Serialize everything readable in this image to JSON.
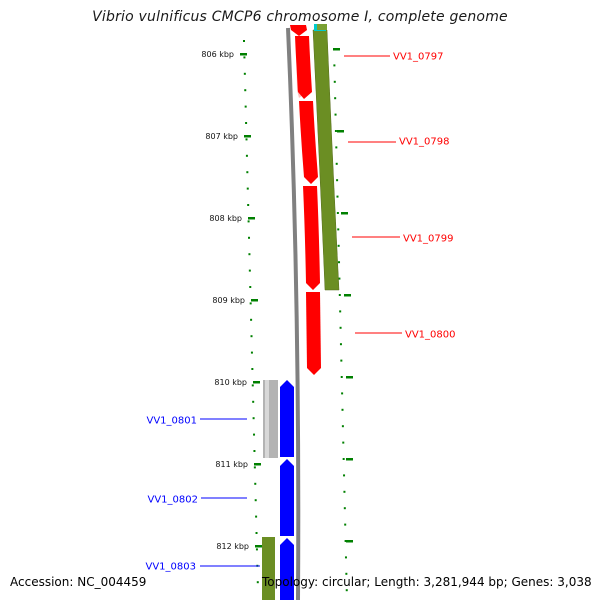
{
  "title": "Vibrio vulnificus CMCP6 chromosome I, complete genome",
  "footer": {
    "accession": "Accession: NC_004459",
    "summary": "Topology: circular; Length: 3,281,944 bp; Genes: 3,038"
  },
  "colors": {
    "forward": "#ff0000",
    "reverse": "#0000ff",
    "olive": "#6b8e23",
    "grey": "#b3b3b3",
    "cyan": "#00cccc",
    "backbone": "#808080",
    "tick": "#008000"
  },
  "scale": {
    "unit": "kbp",
    "ticks": [
      {
        "kbp": 806,
        "label": "806 kbp"
      },
      {
        "kbp": 807,
        "label": "807 kbp"
      },
      {
        "kbp": 808,
        "label": "808 kbp"
      },
      {
        "kbp": 809,
        "label": "809 kbp"
      },
      {
        "kbp": 810,
        "label": "810 kbp"
      },
      {
        "kbp": 811,
        "label": "811 kbp"
      },
      {
        "kbp": 812,
        "label": "812 kbp"
      }
    ]
  },
  "genes": [
    {
      "label": "VV1_0797",
      "strand": "+"
    },
    {
      "label": "VV1_0798",
      "strand": "+"
    },
    {
      "label": "VV1_0799",
      "strand": "+"
    },
    {
      "label": "VV1_0800",
      "strand": "+"
    },
    {
      "label": "VV1_0801",
      "strand": "-"
    },
    {
      "label": "VV1_0802",
      "strand": "-"
    },
    {
      "label": "VV1_0803",
      "strand": "-"
    }
  ]
}
